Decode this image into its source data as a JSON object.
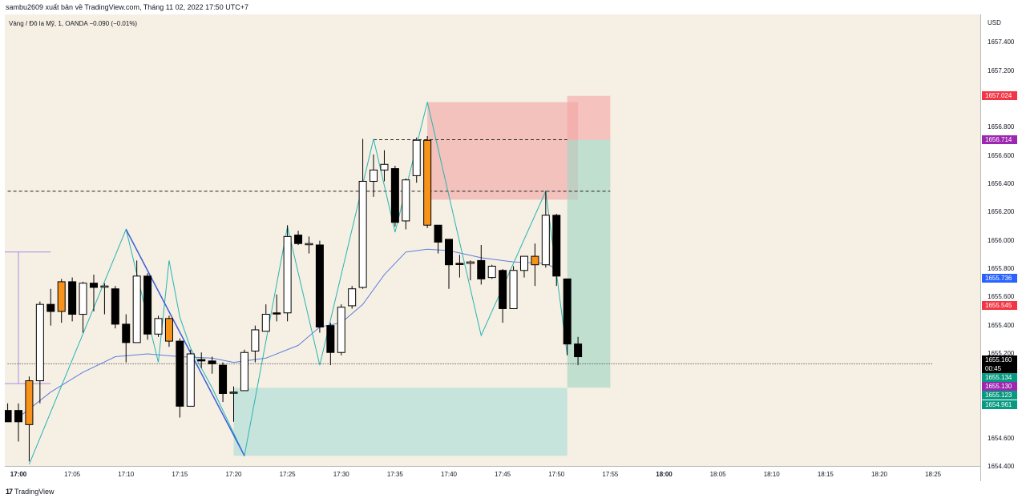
{
  "header": {
    "publication": "sambu2609 xuất bản về TradingView.com, Tháng 11 02, 2022 17:50 UTC+7"
  },
  "legend": {
    "symbol": "Vàng / Đô la Mỹ, 1, OANDA",
    "change": "−0.090 (−0.01%)"
  },
  "price_axis": {
    "currency": "USD",
    "ticks": [
      "1657.400",
      "1657.200",
      "1656.800",
      "1656.600",
      "1656.400",
      "1656.200",
      "1656.000",
      "1655.800",
      "1655.600",
      "1655.400",
      "1655.200",
      "1654.600",
      "1654.400"
    ],
    "tags": [
      {
        "value": "1657.024",
        "color": "#f23645"
      },
      {
        "value": "1656.714",
        "color": "#9c27b0"
      },
      {
        "value": "1655.736",
        "color": "#2962ff"
      },
      {
        "value": "1655.545",
        "color": "#f23645"
      },
      {
        "value": "1655.160",
        "color": "#000000"
      },
      {
        "value": "00:45",
        "color": "#000000"
      },
      {
        "value": "1655.134",
        "color": "#089981"
      },
      {
        "value": "1655.130",
        "color": "#9c27b0"
      },
      {
        "value": "1655.123",
        "color": "#089981"
      },
      {
        "value": "1654.961",
        "color": "#089981"
      }
    ]
  },
  "time_axis": {
    "labels": [
      "17:00",
      "17:05",
      "17:10",
      "17:15",
      "17:20",
      "17:25",
      "17:30",
      "17:35",
      "17:40",
      "17:45",
      "17:50",
      "17:55",
      "18:00",
      "18:05",
      "18:10",
      "18:15",
      "18:20",
      "18:25"
    ],
    "bold_labels": [
      "17:00",
      "18:00"
    ]
  },
  "footer": {
    "logo_mark": "17",
    "brand": "TradingView"
  },
  "colors": {
    "background": "#f6efe3",
    "bull_body": "#ffffff",
    "bear_body": "#000000",
    "highlight_body": "#f7931a",
    "ma_line": "#5b7fe0",
    "zigzag_line": "#26b5b5",
    "swing_line": "#3a5fd9",
    "supply_zone": "#f19c9c",
    "demand_zone": "#9fdad6",
    "stop_zone": "#f5a3a3",
    "target_zone": "#a5d6c4"
  },
  "chart_data": {
    "type": "candlestick",
    "symbol": "Vàng / Đô la Mỹ, 1, OANDA",
    "timeframe": "1",
    "currency": "USD",
    "y_range": [
      1654.3,
      1657.6
    ],
    "x_labels": [
      "17:00",
      "17:05",
      "17:10",
      "17:15",
      "17:20",
      "17:25",
      "17:30",
      "17:35",
      "17:40",
      "17:45",
      "17:50",
      "17:55",
      "18:00",
      "18:05",
      "18:10",
      "18:15",
      "18:20",
      "18:25"
    ],
    "candles": [
      {
        "time": "16:59",
        "open": 1654.8,
        "high": 1654.85,
        "low": 1654.73,
        "close": 1654.72,
        "color": "bear"
      },
      {
        "time": "17:00",
        "open": 1654.8,
        "high": 1654.85,
        "low": 1654.58,
        "close": 1654.72,
        "color": "bear"
      },
      {
        "time": "17:01",
        "open": 1654.7,
        "high": 1655.04,
        "low": 1654.44,
        "close": 1655.01,
        "color": "orange"
      },
      {
        "time": "17:02",
        "open": 1655.01,
        "high": 1655.57,
        "low": 1654.85,
        "close": 1655.55,
        "color": "bull"
      },
      {
        "time": "17:03",
        "open": 1655.55,
        "high": 1655.66,
        "low": 1655.4,
        "close": 1655.5,
        "color": "bear"
      },
      {
        "time": "17:04",
        "open": 1655.5,
        "high": 1655.73,
        "low": 1655.42,
        "close": 1655.71,
        "color": "orange"
      },
      {
        "time": "17:05",
        "open": 1655.71,
        "high": 1655.74,
        "low": 1655.43,
        "close": 1655.48,
        "color": "bear"
      },
      {
        "time": "17:06",
        "open": 1655.48,
        "high": 1655.71,
        "low": 1655.35,
        "close": 1655.7,
        "color": "bull"
      },
      {
        "time": "17:07",
        "open": 1655.7,
        "high": 1655.76,
        "low": 1655.5,
        "close": 1655.67,
        "color": "bear"
      },
      {
        "time": "17:08",
        "open": 1655.68,
        "high": 1655.7,
        "low": 1655.48,
        "close": 1655.68,
        "color": "bull"
      },
      {
        "time": "17:09",
        "open": 1655.66,
        "high": 1655.68,
        "low": 1655.38,
        "close": 1655.41,
        "color": "bear"
      },
      {
        "time": "17:10",
        "open": 1655.41,
        "high": 1655.48,
        "low": 1655.14,
        "close": 1655.28,
        "color": "bear"
      },
      {
        "time": "17:11",
        "open": 1655.28,
        "high": 1655.86,
        "low": 1655.28,
        "close": 1655.75,
        "color": "bull"
      },
      {
        "time": "17:12",
        "open": 1655.75,
        "high": 1655.77,
        "low": 1655.3,
        "close": 1655.34,
        "color": "bear"
      },
      {
        "time": "17:13",
        "open": 1655.34,
        "high": 1655.47,
        "low": 1655.32,
        "close": 1655.45,
        "color": "bull"
      },
      {
        "time": "17:14",
        "open": 1655.45,
        "high": 1655.47,
        "low": 1655.25,
        "close": 1655.29,
        "color": "orange"
      },
      {
        "time": "17:15",
        "open": 1655.29,
        "high": 1655.31,
        "low": 1654.75,
        "close": 1654.83,
        "color": "bear"
      },
      {
        "time": "17:16",
        "open": 1654.83,
        "high": 1655.23,
        "low": 1654.83,
        "close": 1655.2,
        "color": "bull"
      },
      {
        "time": "17:17",
        "open": 1655.16,
        "high": 1655.21,
        "low": 1655.1,
        "close": 1655.15,
        "color": "bear"
      },
      {
        "time": "17:18",
        "open": 1655.15,
        "high": 1655.18,
        "low": 1655.06,
        "close": 1655.13,
        "color": "bear"
      },
      {
        "time": "17:19",
        "open": 1655.12,
        "high": 1655.14,
        "low": 1654.86,
        "close": 1654.92,
        "color": "bear"
      },
      {
        "time": "17:20",
        "open": 1654.93,
        "high": 1654.97,
        "low": 1654.72,
        "close": 1654.93,
        "color": "green"
      },
      {
        "time": "17:21",
        "open": 1654.94,
        "high": 1655.23,
        "low": 1654.94,
        "close": 1655.21,
        "color": "bull"
      },
      {
        "time": "17:22",
        "open": 1655.22,
        "high": 1655.4,
        "low": 1655.14,
        "close": 1655.37,
        "color": "bull"
      },
      {
        "time": "17:23",
        "open": 1655.36,
        "high": 1655.55,
        "low": 1655.36,
        "close": 1655.48,
        "color": "bull"
      },
      {
        "time": "17:24",
        "open": 1655.49,
        "high": 1655.62,
        "low": 1655.43,
        "close": 1655.49,
        "color": "bear"
      },
      {
        "time": "17:25",
        "open": 1655.49,
        "high": 1656.11,
        "low": 1655.43,
        "close": 1656.03,
        "color": "bull"
      },
      {
        "time": "17:26",
        "open": 1656.04,
        "high": 1656.07,
        "low": 1655.97,
        "close": 1655.98,
        "color": "bear"
      },
      {
        "time": "17:27",
        "open": 1655.98,
        "high": 1656.03,
        "low": 1655.91,
        "close": 1655.98,
        "color": "bull"
      },
      {
        "time": "17:28",
        "open": 1655.97,
        "high": 1656.0,
        "low": 1655.35,
        "close": 1655.39,
        "color": "bear"
      },
      {
        "time": "17:29",
        "open": 1655.4,
        "high": 1655.42,
        "low": 1655.12,
        "close": 1655.21,
        "color": "bear"
      },
      {
        "time": "17:30",
        "open": 1655.21,
        "high": 1655.55,
        "low": 1655.19,
        "close": 1655.53,
        "color": "bull"
      },
      {
        "time": "17:31",
        "open": 1655.54,
        "high": 1655.68,
        "low": 1655.52,
        "close": 1655.66,
        "color": "bull"
      },
      {
        "time": "17:32",
        "open": 1655.67,
        "high": 1656.72,
        "low": 1655.66,
        "close": 1656.42,
        "color": "bull"
      },
      {
        "time": "17:33",
        "open": 1656.42,
        "high": 1656.61,
        "low": 1656.31,
        "close": 1656.5,
        "color": "bull"
      },
      {
        "time": "17:34",
        "open": 1656.5,
        "high": 1656.64,
        "low": 1656.42,
        "close": 1656.54,
        "color": "bull"
      },
      {
        "time": "17:35",
        "open": 1656.51,
        "high": 1656.53,
        "low": 1656.1,
        "close": 1656.13,
        "color": "bear"
      },
      {
        "time": "17:36",
        "open": 1656.14,
        "high": 1656.44,
        "low": 1656.08,
        "close": 1656.43,
        "color": "bull"
      },
      {
        "time": "17:37",
        "open": 1656.46,
        "high": 1656.73,
        "low": 1656.41,
        "close": 1656.71,
        "color": "bull"
      },
      {
        "time": "17:38",
        "open": 1656.71,
        "high": 1656.74,
        "low": 1656.09,
        "close": 1656.11,
        "color": "orange"
      },
      {
        "time": "17:39",
        "open": 1656.11,
        "high": 1656.11,
        "low": 1655.91,
        "close": 1655.99,
        "color": "bear"
      },
      {
        "time": "17:40",
        "open": 1656.01,
        "high": 1656.01,
        "low": 1655.66,
        "close": 1655.83,
        "color": "bear"
      },
      {
        "time": "17:41",
        "open": 1655.84,
        "high": 1655.9,
        "low": 1655.74,
        "close": 1655.84,
        "color": "bear"
      },
      {
        "time": "17:42",
        "open": 1655.84,
        "high": 1655.86,
        "low": 1655.72,
        "close": 1655.85,
        "color": "bull"
      },
      {
        "time": "17:43",
        "open": 1655.86,
        "high": 1655.97,
        "low": 1655.69,
        "close": 1655.73,
        "color": "bear"
      },
      {
        "time": "17:44",
        "open": 1655.74,
        "high": 1655.83,
        "low": 1655.73,
        "close": 1655.82,
        "color": "bull"
      },
      {
        "time": "17:45",
        "open": 1655.79,
        "high": 1655.8,
        "low": 1655.42,
        "close": 1655.52,
        "color": "bear"
      },
      {
        "time": "17:46",
        "open": 1655.52,
        "high": 1655.82,
        "low": 1655.52,
        "close": 1655.79,
        "color": "bull"
      },
      {
        "time": "17:47",
        "open": 1655.79,
        "high": 1655.89,
        "low": 1655.74,
        "close": 1655.89,
        "color": "bull"
      },
      {
        "time": "17:48",
        "open": 1655.89,
        "high": 1655.98,
        "low": 1655.68,
        "close": 1655.83,
        "color": "orange"
      },
      {
        "time": "17:49",
        "open": 1655.83,
        "high": 1656.35,
        "low": 1655.81,
        "close": 1656.18,
        "color": "bull"
      },
      {
        "time": "17:50",
        "open": 1656.18,
        "high": 1656.19,
        "low": 1655.68,
        "close": 1655.75,
        "color": "bear"
      },
      {
        "time": "17:51",
        "open": 1655.73,
        "high": 1655.73,
        "low": 1655.19,
        "close": 1655.27,
        "color": "bear"
      },
      {
        "time": "17:52",
        "open": 1655.27,
        "high": 1655.32,
        "low": 1655.12,
        "close": 1655.18,
        "color": "bear"
      }
    ],
    "moving_average": {
      "color": "#5b7fe0",
      "values": [
        [
          "17:00",
          1654.75
        ],
        [
          "17:03",
          1654.93
        ],
        [
          "17:06",
          1655.07
        ],
        [
          "17:09",
          1655.18
        ],
        [
          "17:12",
          1655.2
        ],
        [
          "17:15",
          1655.18
        ],
        [
          "17:18",
          1655.17
        ],
        [
          "17:20",
          1655.14
        ],
        [
          "17:23",
          1655.17
        ],
        [
          "17:26",
          1655.26
        ],
        [
          "17:28",
          1655.39
        ],
        [
          "17:30",
          1655.42
        ],
        [
          "17:32",
          1655.55
        ],
        [
          "17:34",
          1655.76
        ],
        [
          "17:36",
          1655.92
        ],
        [
          "17:38",
          1655.94
        ],
        [
          "17:40",
          1655.93
        ],
        [
          "17:43",
          1655.88
        ],
        [
          "17:46",
          1655.85
        ],
        [
          "17:49",
          1655.84
        ],
        [
          "17:50",
          1655.8
        ]
      ]
    },
    "zigzag": {
      "color": "#26b5b5",
      "points": [
        [
          "17:01",
          1654.42
        ],
        [
          "17:10",
          1656.08
        ],
        [
          "17:13",
          1655.14
        ],
        [
          "17:14",
          1655.86
        ],
        [
          "17:15",
          1655.46
        ],
        [
          "17:16",
          1655.24
        ],
        [
          "17:18",
          1654.96
        ],
        [
          "17:21",
          1654.48
        ],
        [
          "17:25",
          1656.1
        ],
        [
          "17:28",
          1655.12
        ],
        [
          "17:33",
          1656.72
        ],
        [
          "17:35",
          1656.06
        ],
        [
          "17:38",
          1656.98
        ],
        [
          "17:43",
          1655.33
        ],
        [
          "17:49",
          1656.35
        ],
        [
          "17:51",
          1655.19
        ]
      ]
    },
    "swing_line": {
      "color": "#3a5fd9",
      "points": [
        [
          "17:10",
          1656.08
        ],
        [
          "17:21",
          1654.48
        ]
      ]
    },
    "dashed_levels": [
      {
        "price": 1656.714,
        "from": "17:33",
        "to": "17:51"
      },
      {
        "price": 1656.35,
        "from": "16:59",
        "to": "17:55"
      },
      {
        "price": 1655.13,
        "from": "16:59",
        "to": "18:25",
        "dotted": true
      }
    ],
    "zones": [
      {
        "kind": "supply",
        "from": "17:38",
        "to": "17:52",
        "top": 1656.98,
        "bottom": 1656.29
      },
      {
        "kind": "demand",
        "from": "17:20",
        "to": "17:51",
        "top": 1654.96,
        "bottom": 1654.48
      }
    ],
    "position": {
      "entry": 1656.714,
      "stop": 1657.024,
      "target": 1654.961,
      "from": "17:51",
      "to": "17:55"
    },
    "measure": {
      "from": "17:00",
      "top": 1655.92,
      "bottom": 1654.99
    }
  }
}
